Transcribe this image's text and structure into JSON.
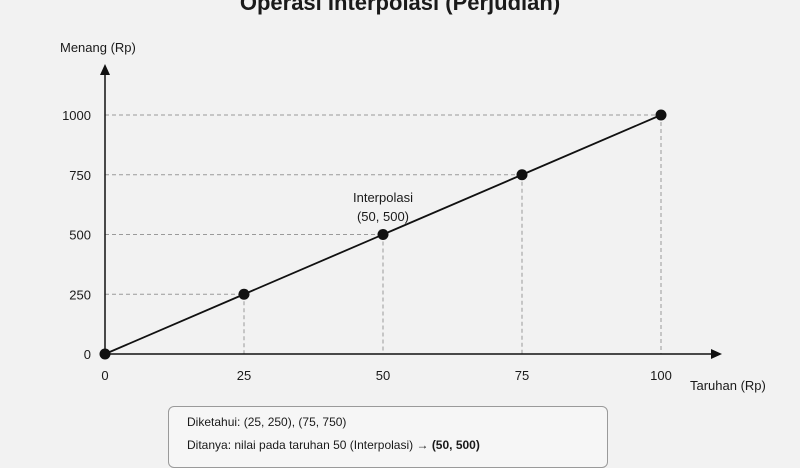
{
  "chart_data": {
    "type": "line",
    "title": "Operasi Interpolasi (Perjudian)",
    "xlabel": "Taruhan (Rp)",
    "ylabel": "Menang (Rp)",
    "xlim": [
      0,
      100
    ],
    "ylim": [
      0,
      1000
    ],
    "x_ticks": [
      "0",
      "25",
      "50",
      "75",
      "100"
    ],
    "y_ticks": [
      "0",
      "250",
      "500",
      "750",
      "1000"
    ],
    "x": [
      0,
      25,
      50,
      75,
      100
    ],
    "y": [
      0,
      250,
      500,
      750,
      1000
    ],
    "highlight": {
      "x": 50,
      "y": 500,
      "label_line1": "Interpolasi",
      "label_line2": "(50, 500)"
    },
    "grid": "dashed guide lines at points"
  },
  "info": {
    "known": "Diketahui: (25, 250), (75, 750)",
    "asked_prefix": "Ditanya: nilai pada taruhan 50 (Interpolasi) → ",
    "asked_answer": "(50, 500)"
  },
  "colors": {
    "line": "#111111",
    "guide": "#9a9a9a",
    "point": "#111111"
  }
}
